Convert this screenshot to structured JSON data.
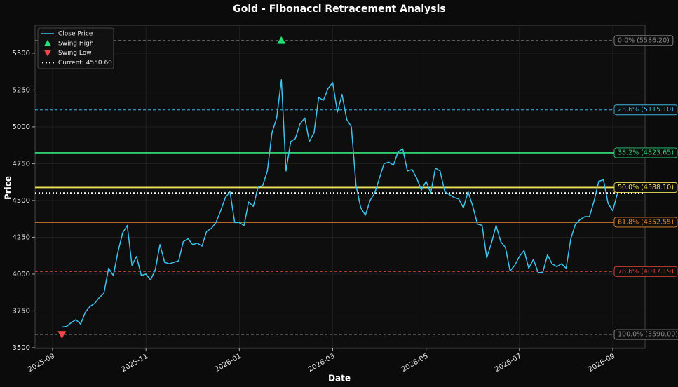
{
  "chart_data": {
    "type": "line",
    "title": "Gold - Fibonacci Retracement Analysis",
    "xlabel": "Date",
    "ylabel": "Price",
    "categories": [
      "2025-09",
      null,
      null,
      null,
      null,
      null,
      null,
      null,
      null,
      null,
      null,
      null,
      null,
      null,
      null,
      null,
      null,
      null,
      null,
      null,
      "2025-11",
      null,
      null,
      null,
      null,
      null,
      null,
      null,
      null,
      null,
      null,
      null,
      null,
      null,
      null,
      null,
      null,
      null,
      null,
      null,
      "2026-01",
      null,
      null,
      null,
      null,
      null,
      null,
      null,
      null,
      null,
      null,
      null,
      null,
      null,
      null,
      null,
      null,
      null,
      null,
      null,
      "2026-03",
      null,
      null,
      null,
      null,
      null,
      null,
      null,
      null,
      null,
      null,
      null,
      null,
      null,
      null,
      null,
      null,
      null,
      null,
      null,
      "2026-05",
      null,
      null,
      null,
      null,
      null,
      null,
      null,
      null,
      null,
      null,
      null,
      null,
      null,
      null,
      null,
      null,
      null,
      null,
      null,
      "2026-07",
      null,
      null,
      null,
      null,
      null,
      null,
      null,
      null,
      null,
      null,
      null,
      null,
      null,
      null,
      null,
      null,
      null,
      null,
      null,
      "2026-09",
      null
    ],
    "ylim": [
      3495,
      5690
    ],
    "yticks": [
      3500,
      3750,
      4000,
      4250,
      4500,
      4750,
      5000,
      5250,
      5500
    ],
    "grid": true,
    "legend": "upper left",
    "series": [
      {
        "name": "Close Price",
        "color": "#3ec3ea",
        "values": [
          null,
          null,
          3640,
          3645,
          3670,
          3690,
          3660,
          3740,
          3780,
          3800,
          3840,
          3870,
          4040,
          3990,
          4150,
          4280,
          4330,
          4060,
          4120,
          3990,
          4000,
          3960,
          4030,
          4200,
          4080,
          4070,
          4080,
          4090,
          4220,
          4240,
          4200,
          4210,
          4190,
          4290,
          4310,
          4350,
          4430,
          4520,
          4560,
          4350,
          4350,
          4330,
          4490,
          4460,
          4590,
          4600,
          4700,
          4960,
          5060,
          5320,
          4700,
          4900,
          4920,
          5020,
          5060,
          4900,
          4960,
          5200,
          5180,
          5260,
          5300,
          5100,
          5220,
          5050,
          5000,
          4600,
          4450,
          4400,
          4500,
          4550,
          4650,
          4750,
          4760,
          4740,
          4830,
          4850,
          4700,
          4710,
          4650,
          4570,
          4630,
          4550,
          4720,
          4700,
          4560,
          4540,
          4520,
          4510,
          4450,
          4560,
          4460,
          4340,
          4330,
          4110,
          4210,
          4330,
          4220,
          4180,
          4020,
          4060,
          4120,
          4160,
          4040,
          4100,
          4010,
          4010,
          4130,
          4070,
          4050,
          4070,
          4040,
          4240,
          4340,
          4370,
          4390,
          4390,
          4500,
          4630,
          4640,
          4480,
          4430,
          4550
        ]
      },
      {
        "name": "Swing High",
        "color": "#22e07a",
        "marker": "triangle-up",
        "values": [
          null,
          null,
          null,
          null,
          null,
          null,
          null,
          null,
          null,
          null,
          null,
          null,
          null,
          null,
          null,
          null,
          null,
          null,
          null,
          null,
          null,
          null,
          null,
          null,
          null,
          null,
          null,
          null,
          null,
          null,
          null,
          null,
          null,
          null,
          null,
          null,
          null,
          null,
          null,
          null,
          null,
          null,
          null,
          null,
          null,
          null,
          null,
          null,
          null,
          5586.2,
          null,
          null,
          null,
          null,
          null,
          null,
          null,
          null,
          null,
          null,
          null,
          null,
          null,
          null,
          null,
          null,
          null,
          null,
          null,
          null,
          null,
          null,
          null,
          null,
          null,
          null,
          null,
          null,
          null,
          null,
          null,
          null,
          null,
          null,
          null,
          null,
          null,
          null,
          null,
          null,
          null,
          null,
          null,
          null,
          null,
          null,
          null,
          null,
          null,
          null,
          null,
          null,
          null,
          null,
          null,
          null,
          null,
          null,
          null,
          null,
          null,
          null,
          null,
          null,
          null,
          null,
          null,
          null,
          null,
          null,
          null,
          null
        ]
      },
      {
        "name": "Swing Low",
        "color": "#f04848",
        "marker": "triangle-down",
        "values": [
          null,
          null,
          3590,
          null,
          null,
          null,
          null,
          null,
          null,
          null,
          null,
          null,
          null,
          null,
          null,
          null,
          null,
          null,
          null,
          null,
          null,
          null,
          null,
          null,
          null,
          null,
          null,
          null,
          null,
          null,
          null,
          null,
          null,
          null,
          null,
          null,
          null,
          null,
          null,
          null,
          null,
          null,
          null,
          null,
          null,
          null,
          null,
          null,
          null,
          null,
          null,
          null,
          null,
          null,
          null,
          null,
          null,
          null,
          null,
          null,
          null,
          null,
          null,
          null,
          null,
          null,
          null,
          null,
          null,
          null,
          null,
          null,
          null,
          null,
          null,
          null,
          null,
          null,
          null,
          null,
          null,
          null,
          null,
          null,
          null,
          null,
          null,
          null,
          null,
          null,
          null,
          null,
          null,
          null,
          null,
          null,
          null,
          null,
          null,
          null,
          null,
          null,
          null,
          null,
          null,
          null,
          null,
          null,
          null,
          null,
          null,
          null,
          null,
          null,
          null,
          null,
          null,
          null,
          null,
          null,
          null,
          null
        ]
      }
    ],
    "current": {
      "name": "Current: 4550.60",
      "value": 4550.6,
      "color": "#ffffff"
    },
    "levels": [
      {
        "label": "0.0% (5586.20)",
        "value": 5586.2,
        "color": "#8a8a8a",
        "style": "dashed"
      },
      {
        "label": "23.6% (5115.10)",
        "value": 5115.1,
        "color": "#3ab4e0",
        "style": "dashed"
      },
      {
        "label": "38.2% (4823.65)",
        "value": 4823.65,
        "color": "#2ecc71",
        "style": "solid"
      },
      {
        "label": "50.0% (4588.10)",
        "value": 4588.1,
        "color": "#f1e05a",
        "style": "solid"
      },
      {
        "label": "61.8% (4352.55)",
        "value": 4352.55,
        "color": "#e8892c",
        "style": "solid"
      },
      {
        "label": "78.6% (4017.19)",
        "value": 4017.19,
        "color": "#e0483c",
        "style": "dashed"
      },
      {
        "label": "100.0% (3590.00)",
        "value": 3590,
        "color": "#8a8a8a",
        "style": "dashed"
      }
    ]
  }
}
